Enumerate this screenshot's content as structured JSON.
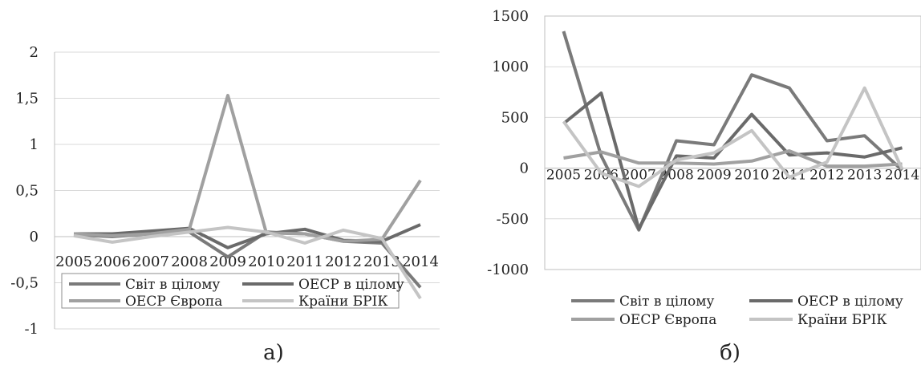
{
  "chart_data": [
    {
      "type": "line",
      "caption": "а)",
      "categories": [
        "2005",
        "2006",
        "2007",
        "2008",
        "2009",
        "2010",
        "2011",
        "2012",
        "2013",
        "2014"
      ],
      "ylim": [
        -1,
        2
      ],
      "yticks": [
        -1,
        -0.5,
        0,
        0.5,
        1,
        1.5,
        2
      ],
      "ytick_labels": [
        "-1",
        "-0,5",
        "0",
        "0,5",
        "1",
        "1,5",
        "2"
      ],
      "grid": true,
      "legend_position": "bottom-inside",
      "series": [
        {
          "name": "Світ в цілому",
          "color": "#7a7a7a",
          "values": [
            0.02,
            0.0,
            0.03,
            0.05,
            -0.22,
            0.05,
            0.03,
            -0.05,
            -0.07,
            -0.55
          ]
        },
        {
          "name": "ОЕСР в цілому",
          "color": "#6a6a6a",
          "values": [
            0.03,
            0.03,
            0.06,
            0.09,
            -0.12,
            0.03,
            0.08,
            -0.04,
            -0.05,
            0.13
          ]
        },
        {
          "name": "ОЕСР Європа",
          "color": "#a0a0a0",
          "values": [
            0.03,
            0.01,
            0.03,
            0.08,
            1.53,
            0.04,
            0.03,
            -0.05,
            -0.03,
            0.61
          ]
        },
        {
          "name": "Країни БРІК",
          "color": "#c4c4c4",
          "values": [
            0.01,
            -0.06,
            0.0,
            0.05,
            0.1,
            0.05,
            -0.07,
            0.07,
            -0.02,
            -0.67
          ]
        }
      ]
    },
    {
      "type": "line",
      "caption": "б)",
      "categories": [
        "2005",
        "2006",
        "2007",
        "2008",
        "2009",
        "2010",
        "2011",
        "2012",
        "2013",
        "2014"
      ],
      "ylim": [
        -1000,
        1500
      ],
      "yticks": [
        -1000,
        -500,
        0,
        500,
        1000,
        1500
      ],
      "ytick_labels": [
        "-1000",
        "-500",
        "0",
        "500",
        "1000",
        "1500"
      ],
      "grid": true,
      "legend_position": "bottom",
      "series": [
        {
          "name": "Світ в цілому",
          "color": "#7a7a7a",
          "values": [
            1350,
            120,
            -610,
            270,
            230,
            920,
            790,
            270,
            320,
            -20
          ]
        },
        {
          "name": "ОЕСР в цілому",
          "color": "#6a6a6a",
          "values": [
            440,
            740,
            -600,
            120,
            100,
            530,
            130,
            150,
            110,
            200
          ]
        },
        {
          "name": "ОЕСР Європа",
          "color": "#a0a0a0",
          "values": [
            100,
            160,
            50,
            50,
            40,
            70,
            170,
            20,
            20,
            40
          ]
        },
        {
          "name": "Країни БРІК",
          "color": "#c4c4c4",
          "values": [
            460,
            -50,
            -180,
            80,
            150,
            370,
            -90,
            60,
            790,
            -10
          ]
        }
      ]
    }
  ]
}
